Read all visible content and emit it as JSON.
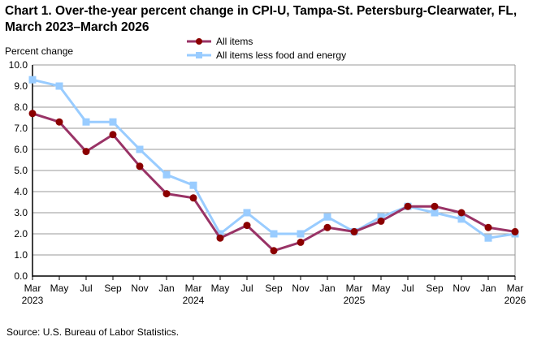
{
  "chart_data": {
    "type": "line",
    "title": "Chart 1. Over-the-year percent change in CPI-U, Tampa-St. Petersburg-Clearwater, FL, March 2023–March 2026",
    "ylabel": "Percent change",
    "xlabel": "",
    "ylim": [
      0,
      10
    ],
    "yticks": [
      "0.0",
      "1.0",
      "2.0",
      "3.0",
      "4.0",
      "5.0",
      "6.0",
      "7.0",
      "8.0",
      "9.0",
      "10.0"
    ],
    "grid": true,
    "legend_placement": "top-center",
    "x": [
      "Mar 2023",
      "May 2023",
      "Jul 2023",
      "Sep 2023",
      "Nov 2023",
      "Jan 2024",
      "Mar 2024",
      "May 2024",
      "Jul 2024",
      "Sep 2024",
      "Nov 2024",
      "Jan 2025",
      "Mar 2025",
      "May 2025",
      "Jul 2025",
      "Sep 2025",
      "Nov 2025",
      "Jan 2026",
      "Mar 2026"
    ],
    "xtick_months": [
      "Mar",
      "May",
      "Jul",
      "Sep",
      "Nov",
      "Jan",
      "Mar",
      "May",
      "Jul",
      "Sep",
      "Nov",
      "Jan",
      "Mar",
      "May",
      "Jul",
      "Sep",
      "Nov",
      "Jan",
      "Mar"
    ],
    "xtick_years": [
      "2023",
      "",
      "",
      "",
      "",
      "",
      "2024",
      "",
      "",
      "",
      "",
      "",
      "2025",
      "",
      "",
      "",
      "",
      "",
      "2026"
    ],
    "series": [
      {
        "name": "All items",
        "color": "#993366",
        "marker_color": "#8B0000",
        "marker": "circle",
        "values": [
          7.7,
          7.3,
          5.9,
          6.7,
          5.2,
          3.9,
          3.7,
          1.8,
          2.4,
          1.2,
          1.6,
          2.3,
          2.1,
          2.6,
          3.3,
          3.3,
          3.0,
          2.3,
          2.1
        ]
      },
      {
        "name": "All items less food and energy",
        "color": "#99CCFF",
        "marker_color": "#99CCFF",
        "marker": "square",
        "values": [
          9.3,
          9.0,
          7.3,
          7.3,
          6.0,
          4.8,
          4.3,
          2.0,
          3.0,
          2.0,
          2.0,
          2.8,
          2.1,
          2.8,
          3.3,
          3.0,
          2.7,
          1.8,
          2.0
        ]
      }
    ]
  },
  "source": "Source: U.S. Bureau of Labor Statistics."
}
